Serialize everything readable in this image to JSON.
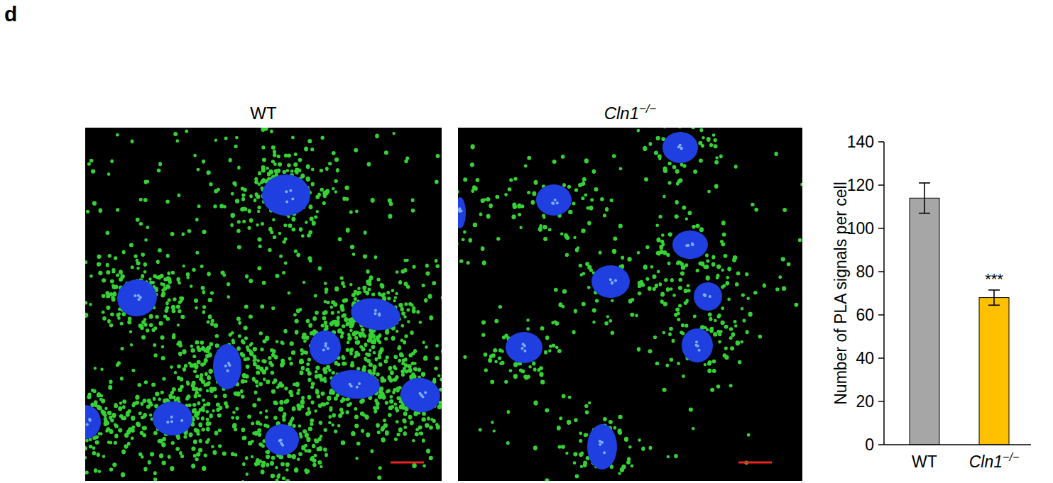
{
  "panel_label": "d",
  "images": [
    {
      "title": "WT"
    },
    {
      "title": "Cln1−/−"
    }
  ],
  "chart_data": {
    "type": "bar",
    "y_label": "Number of PLA signals per cell",
    "categories": [
      "WT",
      "Cln1−/−"
    ],
    "values": [
      114,
      68
    ],
    "errors": [
      7,
      3.5
    ],
    "colors": [
      "#a6a6a6",
      "#ffc000"
    ],
    "ylim": [
      0,
      140
    ],
    "yticks": [
      0,
      20,
      40,
      60,
      80,
      100,
      120,
      140
    ],
    "annotations": [
      {
        "text": "***",
        "index": 1
      }
    ],
    "grid": false
  }
}
